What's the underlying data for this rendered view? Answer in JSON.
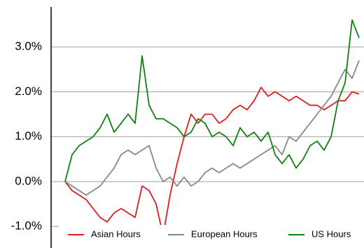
{
  "chart_data": {
    "type": "line",
    "ylim": [
      -1.48,
      3.89
    ],
    "yticks": [
      {
        "value": -1,
        "label": "-1.0%"
      },
      {
        "value": 0,
        "label": "0.0%"
      },
      {
        "value": 1,
        "label": "1.0%"
      },
      {
        "value": 2,
        "label": "2.0%"
      },
      {
        "value": 3,
        "label": "3.0%"
      }
    ],
    "grid": true,
    "legend": "bottom",
    "series": [
      {
        "name": "Asian Hours",
        "color": "#e41a1c",
        "values": [
          0,
          -0.2,
          -0.3,
          -0.4,
          -0.6,
          -0.8,
          -0.9,
          -0.7,
          -0.6,
          -0.7,
          -0.8,
          -0.1,
          -0.2,
          -0.5,
          -1.2,
          -0.3,
          0.4,
          1.0,
          1.5,
          1.3,
          1.5,
          1.5,
          1.3,
          1.4,
          1.6,
          1.7,
          1.6,
          1.8,
          2.1,
          1.9,
          2.0,
          1.9,
          1.8,
          1.9,
          1.8,
          1.7,
          1.7,
          1.6,
          1.7,
          1.8,
          1.8,
          2.0,
          1.95
        ]
      },
      {
        "name": "European Hours",
        "color": "#888888",
        "values": [
          0,
          -0.1,
          -0.2,
          -0.3,
          -0.2,
          -0.1,
          0.1,
          0.3,
          0.6,
          0.7,
          0.6,
          0.7,
          0.8,
          0.3,
          0,
          0.1,
          -0.1,
          0.1,
          -0.1,
          0,
          0.2,
          0.3,
          0.2,
          0.3,
          0.4,
          0.3,
          0.4,
          0.5,
          0.6,
          0.7,
          0.8,
          0.6,
          1.0,
          0.9,
          1.1,
          1.3,
          1.5,
          1.7,
          1.9,
          2.2,
          2.5,
          2.3,
          2.7
        ]
      },
      {
        "name": "US Hours",
        "color": "#108010",
        "values": [
          0,
          0.6,
          0.8,
          0.9,
          1.0,
          1.2,
          1.5,
          1.1,
          1.3,
          1.5,
          1.3,
          2.8,
          1.7,
          1.4,
          1.4,
          1.3,
          1.2,
          1.0,
          1.1,
          1.4,
          1.3,
          1.0,
          1.1,
          1.0,
          0.8,
          1.2,
          1.0,
          1.1,
          0.9,
          1.1,
          0.6,
          0.4,
          0.6,
          0.3,
          0.5,
          0.8,
          0.9,
          0.7,
          1.0,
          1.8,
          2.2,
          3.6,
          3.2
        ]
      }
    ]
  }
}
